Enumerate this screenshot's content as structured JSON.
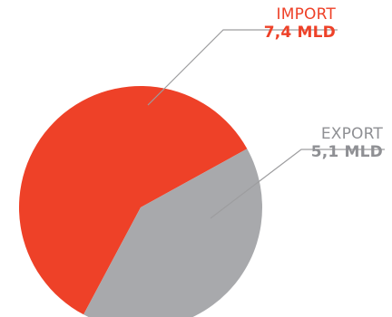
{
  "chart_data": {
    "type": "pie",
    "title": "",
    "start_angle_deg": 208,
    "slices": [
      {
        "name": "IMPORT",
        "value_label": "7,4 MLD",
        "value": 7.4,
        "color": "#ee4128",
        "text_color": "#ee4128"
      },
      {
        "name": "EXPORT",
        "value_label": "5,1 MLD",
        "value": 5.1,
        "color": "#a8a9ac",
        "text_color": "#8f9094"
      }
    ],
    "leader_line_color": "#9d9d9f"
  }
}
